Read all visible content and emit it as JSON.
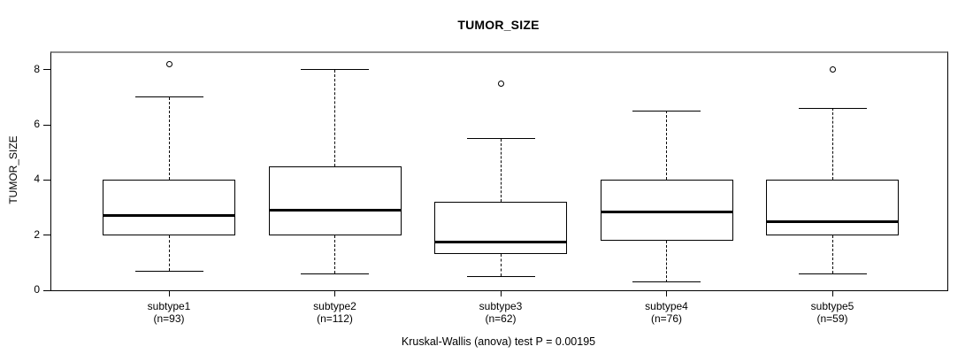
{
  "page": {
    "background": "#ffffff",
    "line_color": "#000000",
    "box_fill": "#ffffff"
  },
  "chart_data": {
    "type": "boxplot",
    "title": "TUMOR_SIZE",
    "ylabel": "TUMOR_SIZE",
    "footer": "Kruskal-Wallis (anova) test P = 0.00195",
    "ylim": [
      0,
      8.6
    ],
    "yticks": [
      0,
      2,
      4,
      6,
      8
    ],
    "grid": false,
    "legend": "none",
    "groups": [
      {
        "label": "subtype1",
        "n_label": "(n=93)",
        "n": 93,
        "whisker_low": 0.7,
        "q1": 2.0,
        "median": 2.7,
        "q3": 4.0,
        "whisker_high": 7.0,
        "outliers": [
          8.2
        ]
      },
      {
        "label": "subtype2",
        "n_label": "(n=112)",
        "n": 112,
        "whisker_low": 0.6,
        "q1": 2.0,
        "median": 2.9,
        "q3": 4.5,
        "whisker_high": 8.0,
        "outliers": []
      },
      {
        "label": "subtype3",
        "n_label": "(n=62)",
        "n": 62,
        "whisker_low": 0.5,
        "q1": 1.3,
        "median": 1.75,
        "q3": 3.2,
        "whisker_high": 5.5,
        "outliers": [
          7.5
        ]
      },
      {
        "label": "subtype4",
        "n_label": "(n=76)",
        "n": 76,
        "whisker_low": 0.3,
        "q1": 1.8,
        "median": 2.85,
        "q3": 4.0,
        "whisker_high": 6.5,
        "outliers": []
      },
      {
        "label": "subtype5",
        "n_label": "(n=59)",
        "n": 59,
        "whisker_low": 0.6,
        "q1": 2.0,
        "median": 2.5,
        "q3": 4.0,
        "whisker_high": 6.6,
        "outliers": [
          8.0
        ]
      }
    ]
  }
}
